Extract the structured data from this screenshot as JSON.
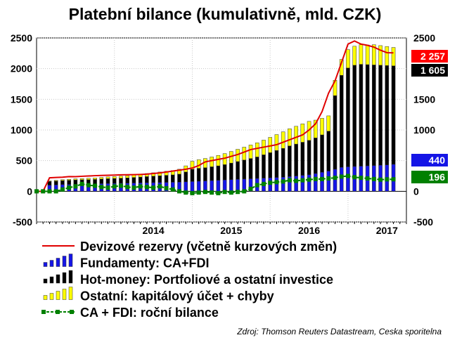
{
  "chart_data": {
    "type": "bar",
    "title": "Platební bilance (kumulativně, mld. CZK)",
    "ylim": [
      -500,
      2500
    ],
    "yticks": [
      -500,
      0,
      500,
      1000,
      1500,
      2000,
      2500
    ],
    "ytick_labels": [
      "-500",
      "0",
      "500",
      "1000",
      "1500",
      "2000",
      "2500"
    ],
    "x_year_labels": [
      "2014",
      "2015",
      "2016",
      "2017"
    ],
    "x_range_months": [
      0,
      57
    ],
    "year_start_months": [
      12,
      24,
      36,
      48
    ],
    "bars_start_month": 2,
    "series": [
      {
        "name": "Fundamenty: CA+FDI",
        "color": "#1515e6",
        "kind": "stacked-bar",
        "values": [
          100,
          105,
          110,
          112,
          115,
          118,
          120,
          122,
          125,
          128,
          130,
          132,
          134,
          136,
          138,
          140,
          142,
          144,
          146,
          148,
          150,
          155,
          160,
          165,
          170,
          175,
          180,
          185,
          190,
          195,
          200,
          205,
          210,
          215,
          220,
          225,
          230,
          240,
          250,
          260,
          270,
          290,
          310,
          330,
          360,
          390,
          400,
          405,
          410,
          415,
          420,
          425,
          430,
          440
        ]
      },
      {
        "name": "Hot-money: Portfoliové a ostatní investice",
        "color": "#000000",
        "kind": "stacked-bar",
        "values": [
          60,
          62,
          65,
          68,
          70,
          70,
          70,
          72,
          75,
          78,
          80,
          82,
          85,
          90,
          95,
          100,
          105,
          110,
          115,
          120,
          130,
          160,
          200,
          210,
          215,
          225,
          235,
          250,
          270,
          290,
          310,
          330,
          350,
          380,
          410,
          440,
          470,
          500,
          520,
          540,
          560,
          580,
          610,
          650,
          1200,
          1500,
          1610,
          1650,
          1660,
          1650,
          1640,
          1630,
          1620,
          1605
        ]
      },
      {
        "name": "Ostatní: kapitálový účet + chyby",
        "color": "#ffff00",
        "kind": "stacked-bar",
        "values": [
          10,
          12,
          14,
          16,
          18,
          20,
          22,
          24,
          26,
          28,
          30,
          32,
          35,
          40,
          45,
          50,
          55,
          60,
          65,
          70,
          80,
          100,
          130,
          140,
          150,
          160,
          170,
          180,
          190,
          200,
          210,
          220,
          230,
          240,
          250,
          260,
          270,
          280,
          290,
          300,
          310,
          290,
          270,
          250,
          250,
          260,
          300,
          310,
          320,
          320,
          330,
          320,
          310,
          300
        ]
      },
      {
        "name": "Devizové rezervy (včetně kurzových změn)",
        "color": "#e00000",
        "kind": "line",
        "x": [
          0,
          1,
          2,
          3,
          4,
          5,
          6,
          7,
          8,
          9,
          10,
          11,
          12,
          13,
          14,
          15,
          16,
          17,
          18,
          19,
          20,
          21,
          22,
          23,
          24,
          25,
          26,
          27,
          28,
          29,
          30,
          31,
          32,
          33,
          34,
          35,
          36,
          37,
          38,
          39,
          40,
          41,
          42,
          43,
          44,
          45,
          46,
          47,
          48,
          49,
          50,
          51,
          52,
          53,
          54,
          55
        ],
        "values": [
          0,
          0,
          220,
          225,
          230,
          240,
          238,
          245,
          250,
          255,
          258,
          262,
          265,
          268,
          270,
          272,
          275,
          280,
          290,
          300,
          315,
          330,
          345,
          360,
          380,
          420,
          480,
          500,
          520,
          540,
          570,
          600,
          640,
          680,
          700,
          720,
          740,
          760,
          800,
          840,
          880,
          920,
          1000,
          1100,
          1300,
          1600,
          1800,
          2100,
          2400,
          2450,
          2400,
          2380,
          2350,
          2300,
          2260,
          2257
        ]
      },
      {
        "name": "CA + FDI: roční bilance",
        "color": "#008000",
        "kind": "dashed-line-markers",
        "x": [
          0,
          1,
          2,
          3,
          4,
          5,
          6,
          7,
          8,
          9,
          10,
          11,
          12,
          13,
          14,
          15,
          16,
          17,
          18,
          19,
          20,
          21,
          22,
          23,
          24,
          25,
          26,
          27,
          28,
          29,
          30,
          31,
          32,
          33,
          34,
          35,
          36,
          37,
          38,
          39,
          40,
          41,
          42,
          43,
          44,
          45,
          46,
          47,
          48,
          49,
          50,
          51,
          52,
          53,
          54,
          55
        ],
        "values": [
          0,
          0,
          0,
          0,
          30,
          60,
          80,
          120,
          100,
          90,
          70,
          60,
          80,
          90,
          70,
          60,
          80,
          70,
          60,
          80,
          50,
          30,
          0,
          -20,
          -30,
          -20,
          -10,
          -20,
          -30,
          -10,
          -20,
          -10,
          0,
          40,
          100,
          120,
          140,
          150,
          160,
          180,
          170,
          180,
          190,
          200,
          200,
          210,
          220,
          240,
          250,
          230,
          220,
          210,
          200,
          190,
          195,
          196
        ]
      }
    ],
    "right_badges": [
      {
        "label": "2 257",
        "value": 2257,
        "color": "#ff0000"
      },
      {
        "label": "1 605",
        "value": 1605,
        "color": "#000000"
      },
      {
        "label": "440",
        "value": 440,
        "color": "#1515e6"
      },
      {
        "label": "196",
        "value": 196,
        "color": "#008000"
      }
    ],
    "legend": [
      {
        "label": "Devizové rezervy (včetně kurzových změn)",
        "swatch": "line",
        "color": "#e00000"
      },
      {
        "label": "Fundamenty: CA+FDI",
        "swatch": "bars",
        "color": "#1515e6"
      },
      {
        "label": "Hot-money: Portfoliové a ostatní investice",
        "swatch": "bars",
        "color": "#000000"
      },
      {
        "label": "Ostatní: kapitálový účet + chyby",
        "swatch": "bars",
        "color": "#ffff00"
      },
      {
        "label": "CA + FDI: roční bilance",
        "swatch": "dashed",
        "color": "#008000"
      }
    ],
    "source": "Zdroj: Thomson Reuters Datastream, Ceska sporitelna"
  }
}
